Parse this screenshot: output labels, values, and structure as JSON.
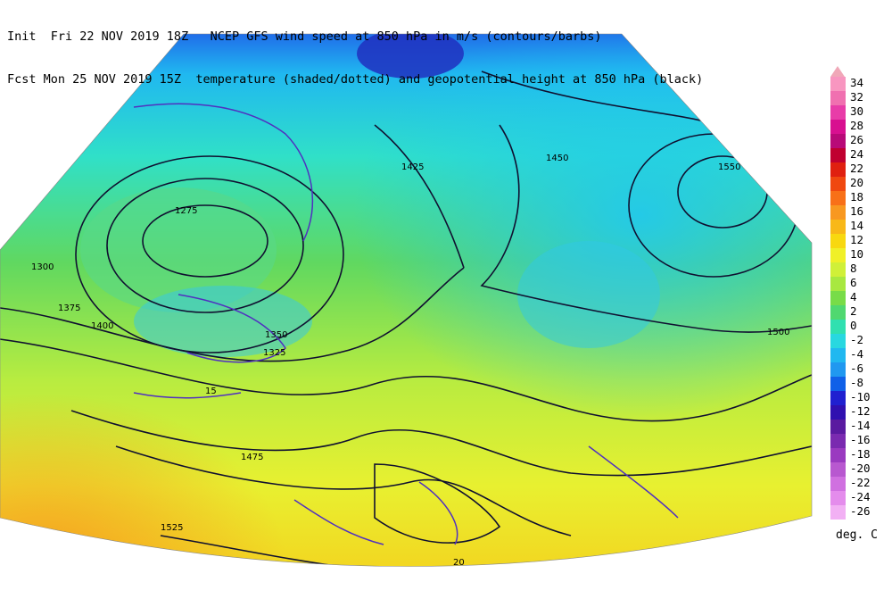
{
  "header": {
    "line1": "Init  Fri 22 NOV 2019 18Z   NCEP GFS wind speed at 850 hPa in m/s (contours/barbs)",
    "line2": "Fcst Mon 25 NOV 2019 15Z  temperature (shaded/dotted) and geopotential height at 850 hPa (black)"
  },
  "legend": {
    "labels": [
      "34",
      "32",
      "30",
      "28",
      "26",
      "24",
      "22",
      "20",
      "18",
      "16",
      "14",
      "12",
      "10",
      "8",
      "6",
      "4",
      "2",
      "0",
      "-2",
      "-4",
      "-6",
      "-8",
      "-10",
      "-12",
      "-14",
      "-16",
      "-18",
      "-20",
      "-22",
      "-24",
      "-26"
    ],
    "colors": [
      "#f896c0",
      "#f070b0",
      "#e83ca8",
      "#d81090",
      "#b80a78",
      "#c00030",
      "#e02010",
      "#f04810",
      "#f87018",
      "#f89820",
      "#f8b818",
      "#f8d810",
      "#f0f028",
      "#d0f038",
      "#a8e840",
      "#78dc48",
      "#50d870",
      "#30e0b0",
      "#28d8e0",
      "#20b8f0",
      "#2098f0",
      "#1060e8",
      "#2020d0",
      "#3010b0",
      "#5a1aa0",
      "#7a2ab0",
      "#9a3ac0",
      "#b858d0",
      "#d070e0",
      "#e48cec",
      "#f2b0f4"
    ],
    "unit": "deg. C"
  },
  "height_labels": [
    "1275",
    "1300",
    "1325",
    "1350",
    "1375",
    "1400",
    "1425",
    "1450",
    "1475",
    "1500",
    "1525",
    "1550"
  ],
  "wind_labels": [
    "15",
    "20"
  ],
  "map_labels": [
    {
      "t": "1275",
      "k": "h"
    },
    {
      "t": "1375",
      "k": "h"
    },
    {
      "t": "1400",
      "k": "h"
    },
    {
      "t": "1425",
      "k": "h"
    },
    {
      "t": "1450",
      "k": "h"
    },
    {
      "t": "1500",
      "k": "h"
    },
    {
      "t": "1525",
      "k": "h"
    },
    {
      "t": "1550",
      "k": "h"
    },
    {
      "t": "1350",
      "k": "h"
    },
    {
      "t": "1300",
      "k": "h"
    },
    {
      "t": "1325",
      "k": "h"
    },
    {
      "t": "1475",
      "k": "h"
    },
    {
      "t": "15",
      "k": "w"
    },
    {
      "t": "20",
      "k": "w"
    }
  ]
}
